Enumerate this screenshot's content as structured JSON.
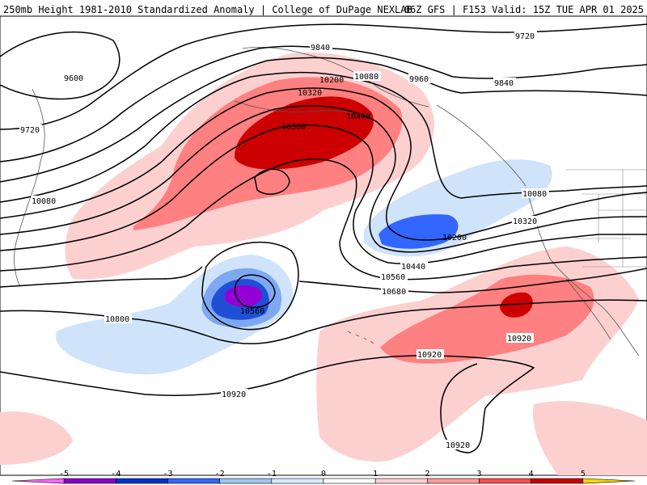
{
  "header": {
    "title": "250mb Height 1981-2010 Standardized Anomaly | College of DuPage NEXLAB",
    "run_info": "06Z GFS | F153 Valid: 15Z TUE APR 01 2025"
  },
  "contour_labels": {
    "h9600": "9600",
    "h9720_w": "9720",
    "h9720_e": "9720",
    "h9840_n": "9840",
    "h9840_e": "9840",
    "h9960": "9960",
    "h10080_n": "10080",
    "h10080_w": "10080",
    "h10080_e": "10080",
    "h10200_n": "10200",
    "h10200_e": "10200",
    "h10320_n": "10320",
    "h10320_e": "10320",
    "h10440_n": "10440",
    "h10440_e": "10440",
    "h10560_n": "10560",
    "h10560_e": "10560",
    "h10560_low": "10560",
    "h10680": "10680",
    "h10800": "10800",
    "h10920_a": "10920",
    "h10920_b": "10920",
    "h10920_c": "10920",
    "h10920_d": "10920"
  },
  "colorbar": {
    "ticks": [
      "-5",
      "-4",
      "-3",
      "-2",
      "-1",
      "0",
      "1",
      "2",
      "3",
      "4",
      "5"
    ],
    "colors": [
      "#ff66ff",
      "#8800cc",
      "#0033cc",
      "#3366ff",
      "#9ec6f5",
      "#d6ebff",
      "#ffffff",
      "#ffd0d0",
      "#ff9a9a",
      "#ff4d4d",
      "#cc0000",
      "#ff8c00",
      "#ffd700"
    ]
  }
}
